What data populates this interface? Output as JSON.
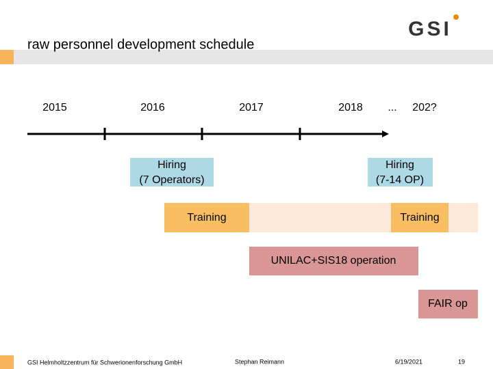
{
  "header": {
    "title": "raw personnel development schedule",
    "logo": "GSI"
  },
  "timeline": {
    "labels": [
      "2015",
      "2016",
      "2017",
      "2018",
      "...",
      "202?"
    ]
  },
  "boxes": [
    {
      "lines": [
        "Hiring",
        "(7 Operators)"
      ]
    },
    {
      "lines": [
        "Hiring",
        "(7-14 OP)"
      ]
    },
    {
      "lines": [
        "Training"
      ]
    },
    {
      "lines": [
        "Training"
      ]
    },
    {
      "lines": [
        "UNILAC+SIS18 operation"
      ]
    },
    {
      "lines": [
        "FAIR op"
      ]
    }
  ],
  "footer": {
    "institute": "GSI Helmholtzzentrum für Schwerionenforschung GmbH",
    "author": "Stephan Reimann",
    "date": "6/19/2021",
    "page": "19"
  }
}
